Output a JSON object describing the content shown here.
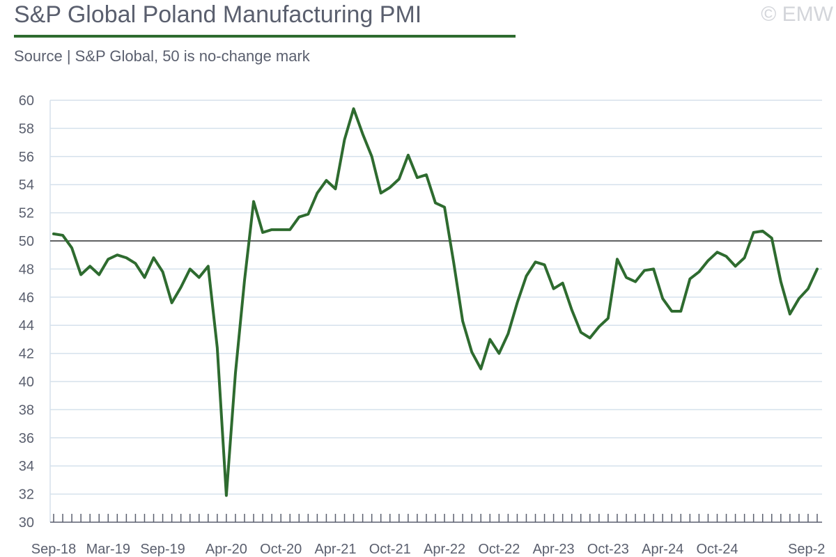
{
  "header": {
    "title": "S&P Global Poland Manufacturing PMI",
    "subtitle": "Source | S&P Global, 50 is no-change mark",
    "copyright": "© EMW"
  },
  "colors": {
    "line": "#2e6b2f",
    "grid": "#d5e1ec",
    "reference": "#333333",
    "text": "#5a5f6e"
  },
  "chart_data": {
    "type": "line",
    "title": "S&P Global Poland Manufacturing PMI",
    "subtitle": "Source | S&P Global, 50 is no-change mark",
    "ylim": [
      30,
      60
    ],
    "y_ticks": [
      30,
      32,
      34,
      36,
      38,
      40,
      42,
      44,
      46,
      48,
      50,
      52,
      54,
      56,
      58,
      60
    ],
    "reference_line": 50,
    "grid": "horizontal",
    "x_tick_labels": [
      "Sep-18",
      "Mar-19",
      "Sep-19",
      "Apr-20",
      "Oct-20",
      "Apr-21",
      "Oct-21",
      "Apr-22",
      "Oct-22",
      "Apr-23",
      "Oct-23",
      "Apr-24",
      "Oct-24",
      "Sep-2"
    ],
    "x_tick_label_index": [
      0,
      6,
      12,
      19,
      25,
      31,
      37,
      43,
      49,
      55,
      61,
      67,
      73,
      84
    ],
    "x_start": "Sep-18",
    "series": [
      {
        "values": [
          50.5,
          50.4,
          49.5,
          47.6,
          48.2,
          47.6,
          48.7,
          49.0,
          48.8,
          48.4,
          47.4,
          48.8,
          47.8,
          45.6,
          46.7,
          48.0,
          47.4,
          48.2,
          42.4,
          31.9,
          40.6,
          47.2,
          52.8,
          50.6,
          50.8,
          50.8,
          50.8,
          51.7,
          51.9,
          53.4,
          54.3,
          53.7,
          57.2,
          59.4,
          57.6,
          56.0,
          53.4,
          53.8,
          54.4,
          56.1,
          54.5,
          54.7,
          52.7,
          52.4,
          48.5,
          44.3,
          42.1,
          40.9,
          43.0,
          42.0,
          43.4,
          45.6,
          47.5,
          48.5,
          48.3,
          46.6,
          47.0,
          45.1,
          43.5,
          43.1,
          43.9,
          44.5,
          48.7,
          47.4,
          47.1,
          47.9,
          48.0,
          45.9,
          45.0,
          45.0,
          47.3,
          47.8,
          48.6,
          49.2,
          48.9,
          48.2,
          48.8,
          50.6,
          50.7,
          50.2,
          47.1,
          44.8,
          45.9,
          46.6,
          48.0
        ]
      }
    ]
  }
}
